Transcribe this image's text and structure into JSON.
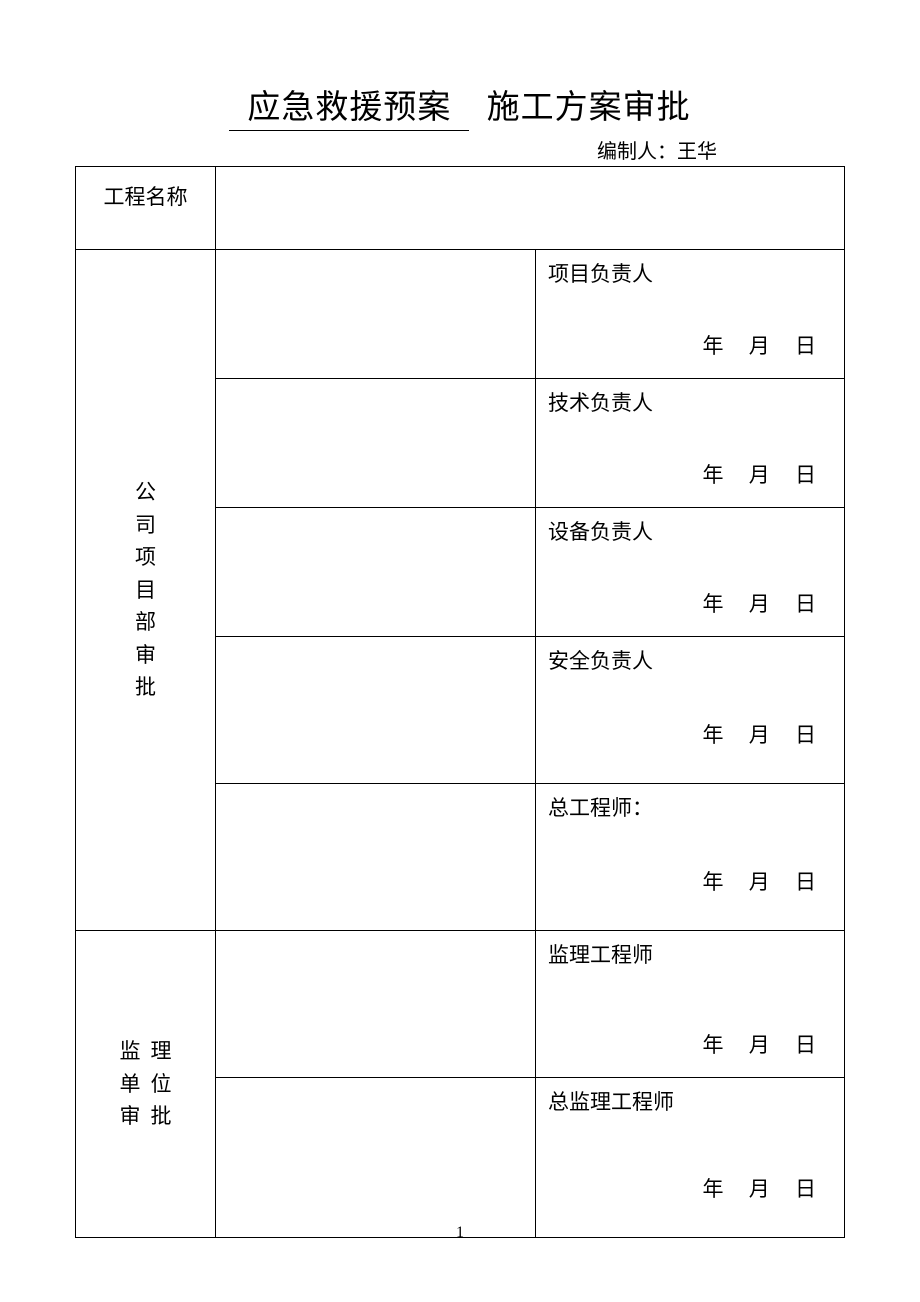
{
  "title": {
    "underlined": "应急救援预案",
    "plain": "施工方案审批"
  },
  "author": {
    "label": "编制人：",
    "name": "王华"
  },
  "labels": {
    "project_name": "工程名称",
    "company_section": "公司项目部审批",
    "supervision_section": "监理单位审批"
  },
  "company_rows": [
    {
      "role": "项目负责人",
      "date_pos": "a"
    },
    {
      "role": "技术负责人",
      "date_pos": "a"
    },
    {
      "role": "设备负责人",
      "date_pos": "a"
    },
    {
      "role": "安全负责人",
      "date_pos": "b"
    },
    {
      "role": "总工程师：",
      "date_pos": "b"
    }
  ],
  "supervision_rows": [
    {
      "role": "监理工程师",
      "date_pos": "a"
    },
    {
      "role": "总监理工程师",
      "date_pos": "b"
    }
  ],
  "date_parts": {
    "year": "年",
    "month": "月",
    "day": "日"
  },
  "page_number": "1"
}
